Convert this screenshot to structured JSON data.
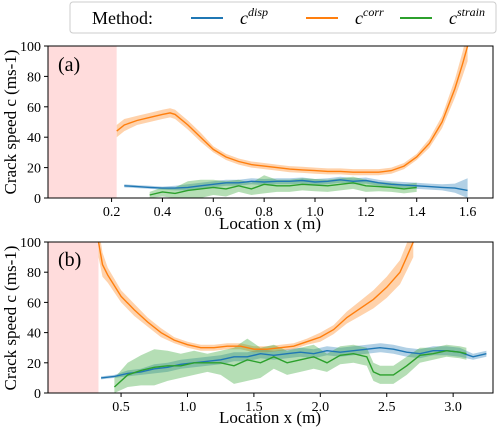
{
  "legend": {
    "method_label": "Method:",
    "entries": [
      {
        "base": "c",
        "sup": "disp",
        "color": "#1f77b4"
      },
      {
        "base": "c",
        "sup": "corr",
        "color": "#ff7f0e"
      },
      {
        "base": "c",
        "sup": "strain",
        "color": "#2ca02c"
      }
    ]
  },
  "colors": {
    "disp": "#1f77b4",
    "corr": "#ff7f0e",
    "strain": "#2ca02c",
    "excluded_region": "#ffdcdc"
  },
  "chart_data": [
    {
      "type": "line",
      "panel_label": "(a)",
      "xlabel": "Location x (m)",
      "ylabel": "Crack speed c (ms-1)",
      "xlim": [
        -0.05,
        1.7
      ],
      "ylim": [
        0,
        100
      ],
      "xticks": [
        0.2,
        0.4,
        0.6,
        0.8,
        1.0,
        1.2,
        1.4,
        1.6
      ],
      "xtick_labels": [
        "0.2",
        "0.4",
        "0.6",
        "0.8",
        "1.0",
        "1.2",
        "1.4",
        "1.6"
      ],
      "yticks": [
        0,
        20,
        40,
        60,
        80,
        100
      ],
      "ytick_labels": [
        "0",
        "20",
        "40",
        "60",
        "80",
        "100"
      ],
      "shaded_region": [
        -0.05,
        0.22
      ],
      "grid": false,
      "series": [
        {
          "key": "disp",
          "x": [
            0.25,
            0.3,
            0.35,
            0.4,
            0.45,
            0.5,
            0.55,
            0.6,
            0.65,
            0.7,
            0.75,
            0.8,
            0.85,
            0.9,
            0.95,
            1.0,
            1.05,
            1.1,
            1.15,
            1.2,
            1.25,
            1.3,
            1.35,
            1.4,
            1.45,
            1.5,
            1.55,
            1.6
          ],
          "y": [
            8,
            7.5,
            7,
            6.5,
            6.5,
            7,
            8,
            9,
            10,
            10,
            11,
            10.5,
            11,
            11,
            11.5,
            10.5,
            11,
            12,
            11,
            11.5,
            10,
            9,
            8.5,
            8,
            7.5,
            7,
            6.5,
            5
          ],
          "band": [
            1,
            1,
            1,
            1,
            1.5,
            2,
            2,
            2,
            2,
            2,
            2,
            2,
            2,
            2,
            2,
            2,
            2,
            2,
            2,
            2,
            2,
            2,
            2,
            2,
            2,
            2,
            3,
            8
          ]
        },
        {
          "key": "corr",
          "x": [
            0.22,
            0.25,
            0.3,
            0.35,
            0.4,
            0.43,
            0.45,
            0.5,
            0.55,
            0.6,
            0.65,
            0.7,
            0.75,
            0.8,
            0.85,
            0.9,
            0.95,
            1.0,
            1.05,
            1.1,
            1.15,
            1.2,
            1.25,
            1.3,
            1.35,
            1.4,
            1.45,
            1.5,
            1.55,
            1.58,
            1.6
          ],
          "y": [
            44,
            48,
            51,
            53,
            55,
            56,
            55,
            48,
            40,
            32,
            27,
            24,
            22,
            21,
            20,
            19,
            18.5,
            18,
            17.5,
            17.5,
            17,
            17,
            17,
            18,
            21,
            27,
            36,
            50,
            72,
            88,
            100
          ],
          "band": [
            4,
            4,
            3,
            3,
            3,
            3,
            3,
            3,
            3,
            2,
            2,
            2,
            2,
            2,
            2,
            2,
            2,
            2,
            2,
            2,
            2,
            2,
            2,
            2,
            2,
            2,
            3,
            4,
            6,
            8,
            10
          ]
        },
        {
          "key": "strain",
          "x": [
            0.35,
            0.4,
            0.45,
            0.5,
            0.55,
            0.6,
            0.65,
            0.7,
            0.75,
            0.8,
            0.85,
            0.9,
            0.95,
            1.0,
            1.05,
            1.1,
            1.15,
            1.2,
            1.25,
            1.3,
            1.35,
            1.4
          ],
          "y": [
            2,
            4,
            3,
            5,
            6,
            7,
            6,
            8,
            6,
            9,
            8,
            8,
            9,
            8.5,
            8,
            9,
            10,
            8,
            7.5,
            7,
            6,
            7
          ],
          "band": [
            2,
            3,
            4,
            6,
            6,
            5,
            5,
            4,
            4,
            6,
            4,
            4,
            4,
            4,
            4,
            4,
            4,
            4,
            3,
            3,
            3,
            3
          ]
        }
      ]
    },
    {
      "type": "line",
      "panel_label": "(b)",
      "xlabel": "Location x (m)",
      "ylabel": "Crack speed c (ms-1)",
      "xlim": [
        -0.05,
        3.3
      ],
      "ylim": [
        0,
        100
      ],
      "xticks": [
        0.5,
        1.0,
        1.5,
        2.0,
        2.5,
        3.0
      ],
      "xtick_labels": [
        "0.5",
        "1.0",
        "1.5",
        "2.0",
        "2.5",
        "3.0"
      ],
      "yticks": [
        0,
        20,
        40,
        60,
        80,
        100
      ],
      "ytick_labels": [
        "0",
        "20",
        "40",
        "60",
        "80",
        "100"
      ],
      "shaded_region": [
        -0.05,
        0.33
      ],
      "grid": false,
      "series": [
        {
          "key": "disp",
          "x": [
            0.35,
            0.45,
            0.55,
            0.65,
            0.75,
            0.85,
            0.95,
            1.05,
            1.15,
            1.25,
            1.35,
            1.45,
            1.55,
            1.65,
            1.75,
            1.85,
            1.95,
            2.05,
            2.15,
            2.25,
            2.35,
            2.45,
            2.55,
            2.65,
            2.75,
            2.85,
            2.95,
            3.05,
            3.15,
            3.25
          ],
          "y": [
            10,
            11,
            13,
            14,
            16,
            17,
            19,
            20,
            21,
            22,
            24,
            24,
            26,
            25,
            26,
            27,
            26,
            28,
            27,
            28,
            29,
            30,
            29,
            27,
            26,
            28,
            28,
            27,
            24,
            26
          ],
          "band": [
            1,
            1,
            2,
            2,
            3,
            3,
            3,
            3,
            3,
            3,
            3,
            3,
            3,
            3,
            3,
            3,
            3,
            3,
            3,
            3,
            3,
            3,
            3,
            3,
            3,
            3,
            3,
            3,
            2,
            2
          ]
        },
        {
          "key": "corr",
          "x": [
            0.33,
            0.36,
            0.4,
            0.5,
            0.6,
            0.7,
            0.8,
            0.9,
            1.0,
            1.1,
            1.2,
            1.3,
            1.4,
            1.5,
            1.6,
            1.7,
            1.8,
            1.9,
            2.0,
            2.1,
            2.2,
            2.3,
            2.4,
            2.5,
            2.6,
            2.65,
            2.7
          ],
          "y": [
            100,
            85,
            78,
            64,
            55,
            47,
            40,
            35,
            32,
            30,
            30,
            31,
            31,
            29,
            29,
            30,
            31,
            34,
            37,
            42,
            50,
            56,
            62,
            70,
            80,
            90,
            100
          ],
          "band": [
            10,
            8,
            5,
            4,
            4,
            3,
            3,
            2,
            2,
            2,
            2,
            2,
            2,
            2,
            2,
            2,
            2,
            2,
            3,
            3,
            4,
            5,
            6,
            7,
            8,
            9,
            10
          ]
        },
        {
          "key": "strain",
          "x": [
            0.45,
            0.55,
            0.65,
            0.75,
            0.85,
            0.95,
            1.05,
            1.15,
            1.25,
            1.35,
            1.45,
            1.55,
            1.65,
            1.75,
            1.85,
            1.95,
            2.05,
            2.15,
            2.25,
            2.35,
            2.4,
            2.45,
            2.55,
            2.65,
            2.75,
            2.85,
            2.95,
            3.05,
            3.1
          ],
          "y": [
            4,
            12,
            15,
            17,
            18,
            18,
            20,
            20,
            20,
            18,
            22,
            20,
            24,
            20,
            22,
            24,
            20,
            25,
            26,
            24,
            14,
            12,
            12,
            18,
            25,
            26,
            28,
            27,
            26
          ],
          "band": [
            6,
            8,
            10,
            12,
            10,
            8,
            8,
            6,
            8,
            12,
            14,
            10,
            8,
            8,
            8,
            8,
            6,
            6,
            6,
            6,
            6,
            6,
            6,
            6,
            5,
            4,
            4,
            4,
            4
          ]
        }
      ]
    }
  ]
}
